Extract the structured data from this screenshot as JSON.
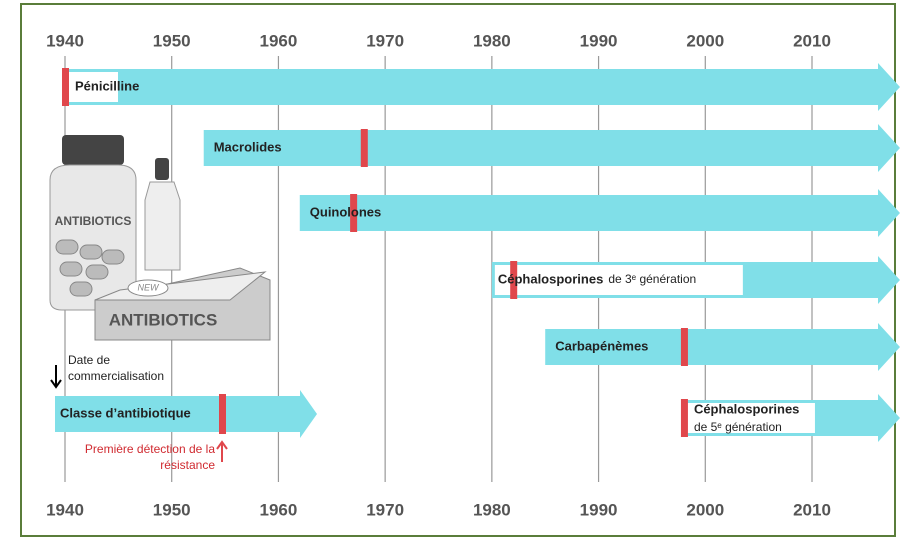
{
  "axis": {
    "ticks": [
      1940,
      1950,
      1960,
      1970,
      1980,
      1990,
      2000,
      2010
    ]
  },
  "rows": [
    {
      "label": "Pénicilline",
      "start": 1940,
      "resistance": 1940
    },
    {
      "label": "Macrolides",
      "start": 1953,
      "resistance": 1968
    },
    {
      "label": "Quinolones",
      "start": 1962,
      "resistance": 1967
    },
    {
      "label": "Céphalosporines",
      "detail": "de 3ᵉ génération",
      "start": 1980,
      "resistance": 1982
    },
    {
      "label": "Carbapénèmes",
      "start": 1985,
      "resistance": 1998
    },
    {
      "label": "Céphalosporines",
      "detail": "de 5ᵉ génération",
      "start": 1998,
      "resistance": 1998
    }
  ],
  "legend": {
    "bar_label": "Classe d’antibiotique",
    "start_note": "Date de commercialisation",
    "resistance_note": "Première détection de la résistance"
  },
  "illustration": {
    "bottle_label": "ANTIBIOTICS",
    "box_badge": "NEW",
    "box_label": "ANTIBIOTICS"
  }
}
